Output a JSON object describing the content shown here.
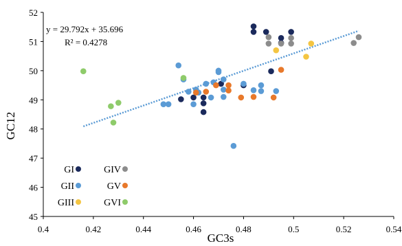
{
  "chart_data": {
    "type": "scatter",
    "xlabel": "GC3s",
    "ylabel": "GC12",
    "xlim": [
      0.4,
      0.54
    ],
    "ylim": [
      45,
      52
    ],
    "x_ticks": [
      "0.4",
      "0.42",
      "0.44",
      "0.46",
      "0.48",
      "0.5",
      "0.52",
      "0.54"
    ],
    "y_ticks": [
      "45",
      "46",
      "47",
      "48",
      "49",
      "50",
      "51",
      "52"
    ],
    "x_tick_values": [
      0.4,
      0.42,
      0.44,
      0.46,
      0.48,
      0.5,
      0.52,
      0.54
    ],
    "y_tick_values": [
      45,
      46,
      47,
      48,
      49,
      50,
      51,
      52
    ],
    "grid": false,
    "annotation": {
      "equation": "y = 29.792x + 35.696",
      "r_squared": "R² = 0.4278"
    },
    "trendline": {
      "slope": 29.792,
      "intercept": 35.696,
      "x_range": [
        0.416,
        0.526
      ],
      "color": "#5b9bd5",
      "style": "dotted"
    },
    "legend_position": "bottom-left",
    "legend_columns": [
      [
        "GI",
        "GII",
        "GIII"
      ],
      [
        "GIV",
        "GV",
        "GVI"
      ]
    ],
    "series": [
      {
        "name": "GI",
        "color": "#1b2a5c",
        "points": [
          [
            0.484,
            51.52
          ],
          [
            0.484,
            51.33
          ],
          [
            0.489,
            51.33
          ],
          [
            0.499,
            51.33
          ],
          [
            0.495,
            51.12
          ],
          [
            0.495,
            50.95
          ],
          [
            0.491,
            49.98
          ],
          [
            0.48,
            49.5
          ],
          [
            0.46,
            49.08
          ],
          [
            0.464,
            49.08
          ],
          [
            0.464,
            48.88
          ],
          [
            0.464,
            48.58
          ],
          [
            0.455,
            49.02
          ],
          [
            0.471,
            49.55
          ]
        ]
      },
      {
        "name": "GII",
        "color": "#5b9bd5",
        "points": [
          [
            0.454,
            50.18
          ],
          [
            0.456,
            49.7
          ],
          [
            0.458,
            49.28
          ],
          [
            0.46,
            48.85
          ],
          [
            0.461,
            49.35
          ],
          [
            0.465,
            49.55
          ],
          [
            0.467,
            49.08
          ],
          [
            0.47,
            50.0
          ],
          [
            0.47,
            49.95
          ],
          [
            0.472,
            49.7
          ],
          [
            0.472,
            49.35
          ],
          [
            0.472,
            49.1
          ],
          [
            0.448,
            48.85
          ],
          [
            0.45,
            48.85
          ],
          [
            0.476,
            47.42
          ],
          [
            0.48,
            49.55
          ],
          [
            0.484,
            49.33
          ],
          [
            0.487,
            49.5
          ],
          [
            0.487,
            49.3
          ],
          [
            0.493,
            49.3
          ],
          [
            0.462,
            49.25
          ],
          [
            0.468,
            49.6
          ]
        ]
      },
      {
        "name": "GIII",
        "color": "#f4c542",
        "points": [
          [
            0.493,
            50.7
          ],
          [
            0.505,
            50.48
          ],
          [
            0.507,
            50.93
          ]
        ]
      },
      {
        "name": "GIV",
        "color": "#8c8c8c",
        "points": [
          [
            0.49,
            51.15
          ],
          [
            0.49,
            50.93
          ],
          [
            0.495,
            50.93
          ],
          [
            0.499,
            51.12
          ],
          [
            0.499,
            50.93
          ],
          [
            0.524,
            50.95
          ],
          [
            0.526,
            51.15
          ]
        ]
      },
      {
        "name": "GV",
        "color": "#e8792b",
        "points": [
          [
            0.461,
            49.25
          ],
          [
            0.465,
            49.28
          ],
          [
            0.469,
            49.5
          ],
          [
            0.474,
            49.5
          ],
          [
            0.474,
            49.32
          ],
          [
            0.479,
            49.08
          ],
          [
            0.484,
            49.1
          ],
          [
            0.492,
            49.08
          ],
          [
            0.495,
            50.03
          ]
        ]
      },
      {
        "name": "GVI",
        "color": "#8ecb6a",
        "points": [
          [
            0.416,
            49.98
          ],
          [
            0.427,
            48.78
          ],
          [
            0.428,
            48.22
          ],
          [
            0.43,
            48.9
          ],
          [
            0.456,
            49.75
          ]
        ]
      }
    ]
  }
}
